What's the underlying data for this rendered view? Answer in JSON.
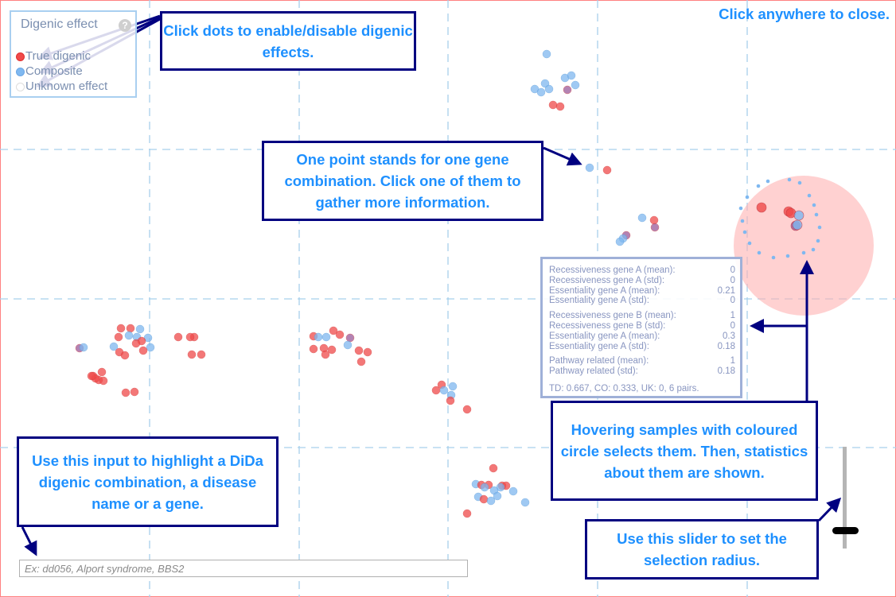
{
  "close_hint": "Click anywhere to close.",
  "legend": {
    "title": "Digenic effect",
    "help_glyph": "?",
    "items": [
      {
        "label": "True digenic",
        "color": "#f04a4a"
      },
      {
        "label": "Composite",
        "color": "#7fb8f0"
      },
      {
        "label": "Unknown effect",
        "color": "#ffffff"
      }
    ]
  },
  "callouts": {
    "legend_hint": "Click dots to enable/disable digenic effects.",
    "point_hint": "One point stands for one gene combination. Click one of them to gather more information.",
    "hover_hint": "Hovering samples with coloured circle selects them. Then, statistics about them are shown.",
    "input_hint": "Use this input to highlight a DiDa digenic combination, a disease name or a gene.",
    "slider_hint": "Use this slider to set the selection radius."
  },
  "stats": {
    "gene_a": [
      {
        "label": "Recessiveness gene A (mean):",
        "value": "0"
      },
      {
        "label": "Recessiveness gene A (std):",
        "value": "0"
      },
      {
        "label": "Essentiality gene A (mean):",
        "value": "0.21"
      },
      {
        "label": "Essentiality gene A (std):",
        "value": "0"
      }
    ],
    "gene_b": [
      {
        "label": "Recessiveness gene B (mean):",
        "value": "1"
      },
      {
        "label": "Recessiveness gene B (std):",
        "value": "0"
      },
      {
        "label": "Essentiality gene A (mean):",
        "value": "0.3"
      },
      {
        "label": "Essentiality gene A (std):",
        "value": "0.18"
      }
    ],
    "pathway": [
      {
        "label": "Pathway related (mean):",
        "value": "1"
      },
      {
        "label": "Pathway related (std):",
        "value": "0.18"
      }
    ],
    "summary": "TD: 0.667, CO: 0.333, UK: 0, 6 pairs."
  },
  "search": {
    "placeholder": "Ex: dd056, Alport syndrome, BBS2",
    "value": ""
  },
  "colors": {
    "true_digenic": "#f04a4a",
    "composite": "#7fb8f0",
    "callout_border": "#000080",
    "callout_text": "#1e90ff",
    "selection_circle": "#ffc0c0"
  }
}
